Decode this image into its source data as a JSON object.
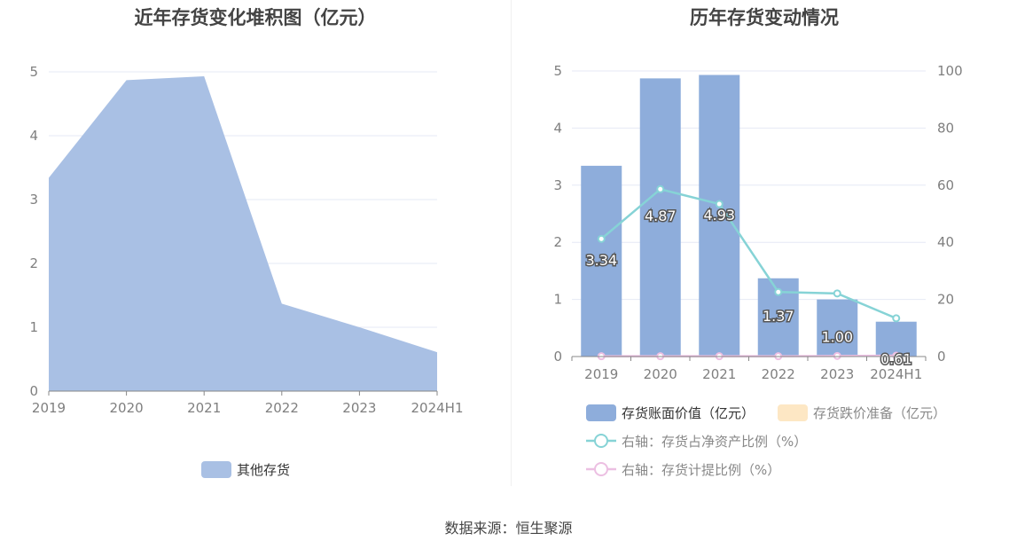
{
  "charts": {
    "left_title": "近年存货变化堆积图（亿元）",
    "right_title": "历年存货变动情况"
  },
  "source": "数据来源：恒生聚源",
  "colors": {
    "area": "#a9c0e4",
    "bar": "#8eaddb",
    "bar_legend2": "#fde7c4",
    "line1": "#86d3d6",
    "line2": "#ecbfe2",
    "grid": "#e6e9f5",
    "axis_text": "#7f7f7f"
  },
  "chart_data": [
    {
      "type": "area",
      "title": "近年存货变化堆积图（亿元）",
      "categories": [
        "2019",
        "2020",
        "2021",
        "2022",
        "2023",
        "2024H1"
      ],
      "series": [
        {
          "name": "其他存货",
          "values": [
            3.34,
            4.87,
            4.93,
            1.37,
            1.0,
            0.61
          ]
        }
      ],
      "y_ticks": [
        "0",
        "1",
        "2",
        "3",
        "4",
        "5"
      ],
      "ylim": [
        0,
        5
      ],
      "grid": true,
      "legend_position": "bottom"
    },
    {
      "type": "bar",
      "title": "历年存货变动情况",
      "categories": [
        "2019",
        "2020",
        "2021",
        "2022",
        "2023",
        "2024H1"
      ],
      "series": [
        {
          "name": "存货账面价值（亿元）",
          "type": "bar",
          "values": [
            3.34,
            4.87,
            4.93,
            1.37,
            1.0,
            0.61
          ],
          "labels": [
            "3.34",
            "4.87",
            "4.93",
            "1.37",
            "1.00",
            "0.61"
          ]
        },
        {
          "name": "存货跌价准备（亿元）",
          "type": "bar",
          "values": [
            0,
            0,
            0,
            0,
            0,
            0
          ]
        },
        {
          "name": "右轴：存货占净资产比例（%）",
          "type": "line",
          "axis": "right",
          "values": [
            41.2,
            58.6,
            53.4,
            22.6,
            22.1,
            13.4
          ]
        },
        {
          "name": "右轴：存货计提比例（%）",
          "type": "line",
          "axis": "right",
          "values": [
            0.1,
            0.1,
            0.1,
            0.1,
            0.2,
            0.3
          ]
        }
      ],
      "y_ticks": [
        "0",
        "1",
        "2",
        "3",
        "4",
        "5"
      ],
      "y2_ticks": [
        "0",
        "20",
        "40",
        "60",
        "80",
        "100"
      ],
      "ylim": [
        0,
        5
      ],
      "y2lim": [
        0,
        100
      ],
      "grid": true,
      "legend_position": "bottom"
    }
  ]
}
